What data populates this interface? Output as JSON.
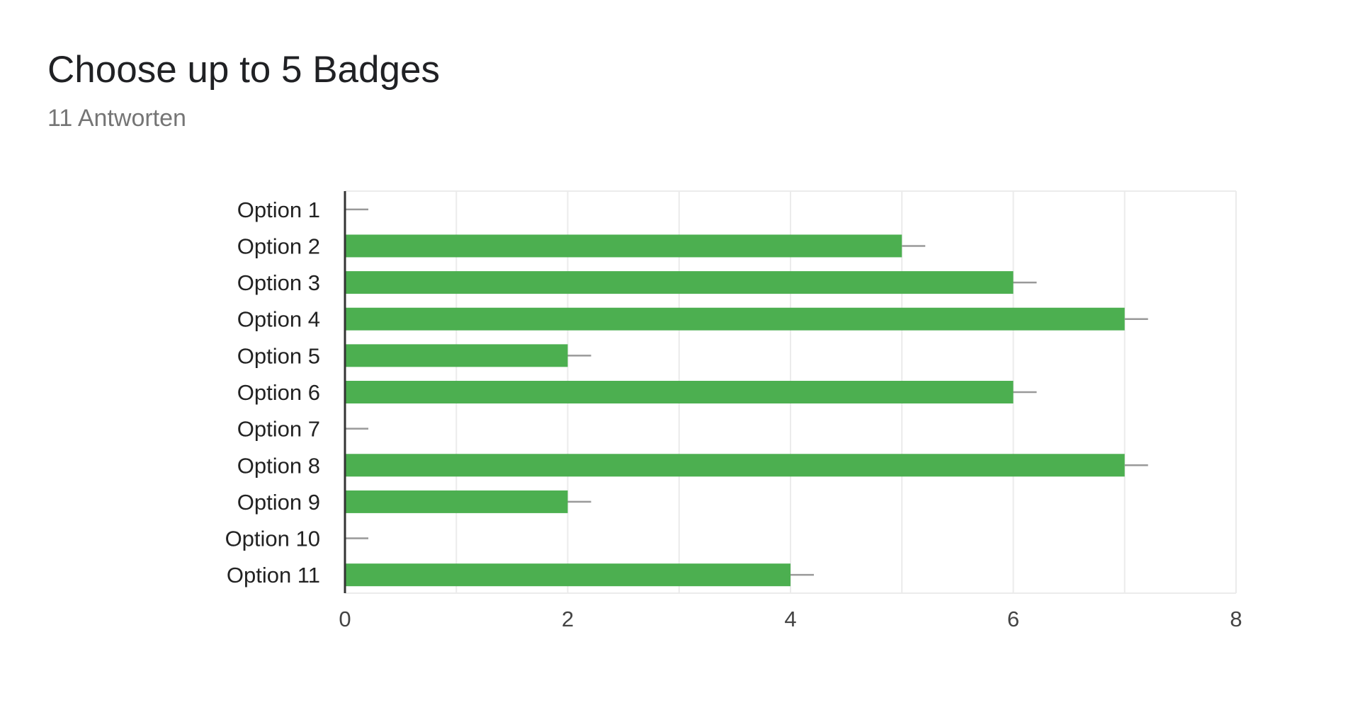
{
  "title": "Choose up to 5 Badges",
  "subtitle": "11 Antworten",
  "colors": {
    "bar": "#4caf50",
    "grid": "#ebebeb",
    "axis": "#333333",
    "error_bar": "#999999"
  },
  "chart_data": {
    "type": "bar",
    "orientation": "horizontal",
    "categories": [
      "Option 1",
      "Option 2",
      "Option 3",
      "Option 4",
      "Option 5",
      "Option 6",
      "Option 7",
      "Option 8",
      "Option 9",
      "Option 10",
      "Option 11"
    ],
    "values": [
      0,
      5,
      6,
      7,
      2,
      6,
      0,
      7,
      2,
      0,
      4
    ],
    "xlim": [
      0,
      8
    ],
    "xticks": [
      0,
      2,
      4,
      6,
      8
    ],
    "error_bars": true,
    "grid": true,
    "legend": "none"
  }
}
